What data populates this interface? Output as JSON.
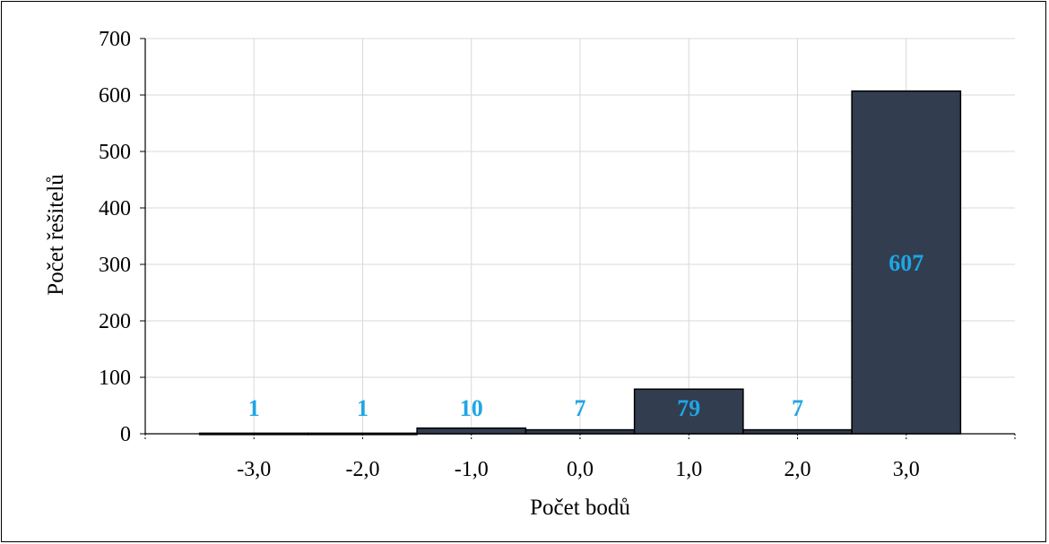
{
  "chart_data": {
    "type": "bar",
    "title": "",
    "xlabel": "Počet bodů",
    "ylabel": "Počet řešitelů",
    "categories": [
      "-3,0",
      "-2,0",
      "-1,0",
      "0,0",
      "1,0",
      "2,0",
      "3,0"
    ],
    "values": [
      1,
      1,
      10,
      7,
      79,
      7,
      607
    ],
    "data_labels": [
      "1",
      "1",
      "10",
      "7",
      "79",
      "7",
      "607"
    ],
    "ylim": [
      0,
      700
    ],
    "yticks": [
      "0",
      "100",
      "200",
      "300",
      "400",
      "500",
      "600",
      "700"
    ],
    "grid": true,
    "legend": "none",
    "colors": {
      "bar_fill": "#323d4f",
      "bar_edge": "#000000",
      "data_label": "#1ea6e4",
      "grid": "#d9d9d9"
    }
  }
}
